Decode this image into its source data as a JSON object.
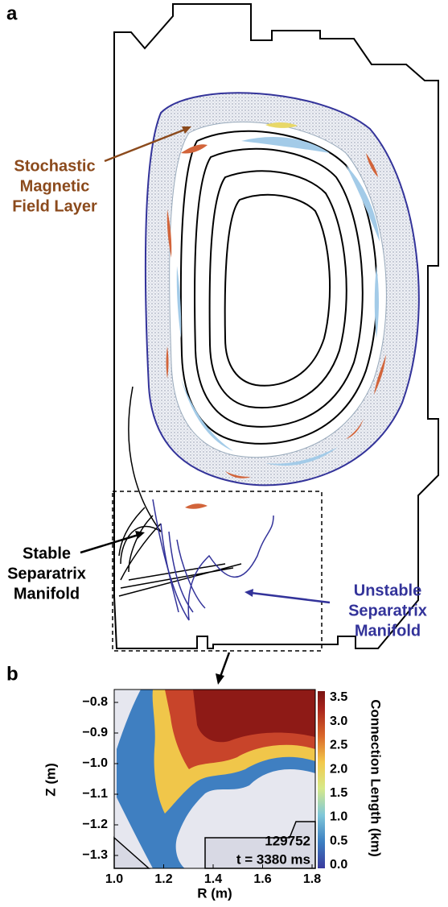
{
  "panel_a": {
    "label": "a",
    "stochastic_label": [
      "Stochastic",
      "Magnetic",
      "Field Layer"
    ],
    "stable_label": [
      "Stable",
      "Separatrix",
      "Manifold"
    ],
    "unstable_label": [
      "Unstable",
      "Separatrix",
      "Manifold"
    ]
  },
  "panel_b": {
    "label": "b",
    "xlabel": "R (m)",
    "ylabel": "Z (m)",
    "xticks": [
      "1.0",
      "1.2",
      "1.4",
      "1.6",
      "1.8"
    ],
    "yticks": [
      "−0.8",
      "−0.9",
      "−1.0",
      "−1.1",
      "−1.2",
      "−1.3"
    ],
    "colorbar_label": "Connection Length (km)",
    "colorbar_ticks": [
      "3.5",
      "3.0",
      "2.5",
      "2.0",
      "1.5",
      "1.0",
      "0.5",
      "0.0"
    ],
    "shot": "129752",
    "time": "t = 3380 ms"
  }
}
